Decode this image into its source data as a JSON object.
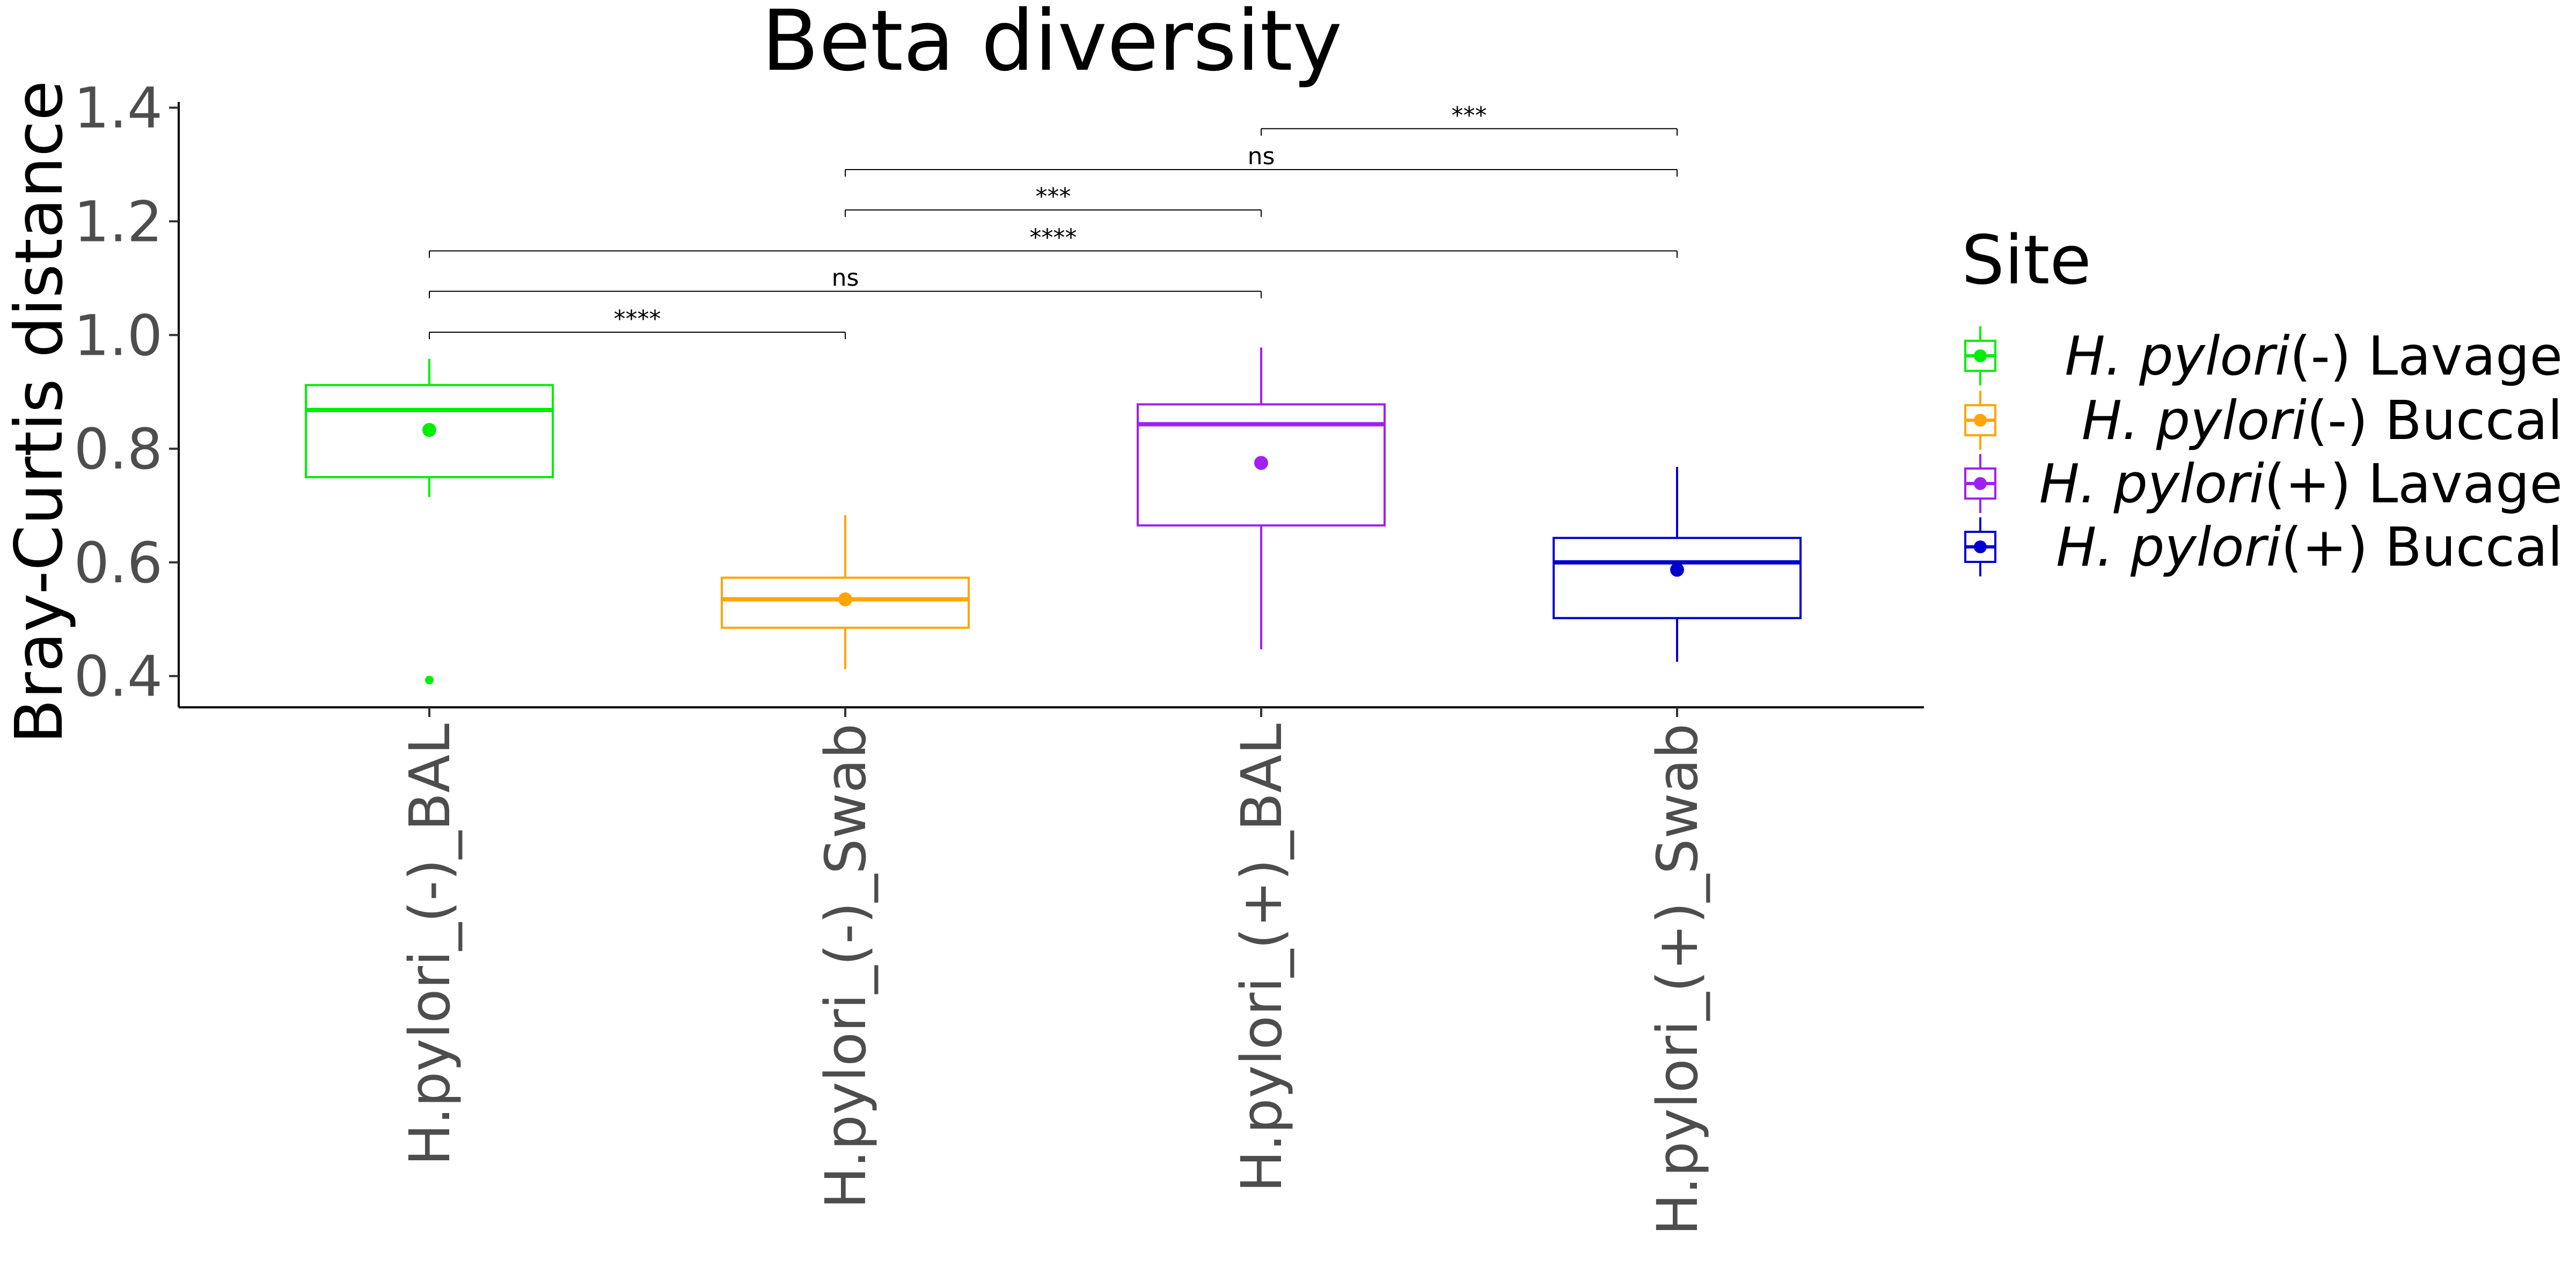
{
  "chart_data": {
    "type": "box",
    "title": "Beta diversity",
    "xlabel": "",
    "ylabel": "Bray-Curtis distance",
    "ylim": [
      0.345,
      1.41
    ],
    "yticks": [
      "0.4",
      "0.6",
      "0.8",
      "1.0",
      "1.2",
      "1.4"
    ],
    "categories": [
      "H.pylori_(-)_BAL",
      "H.pylori_(-)_Swab",
      "H.pylori_(+)_BAL",
      "H.pylori_(+)_Swab"
    ],
    "series": [
      {
        "category": "H.pylori_(-)_BAL",
        "legend_italic": "H. pylori",
        "legend_rest": "(-) Lavage",
        "color": "#00ee00",
        "whisker_low": 0.715,
        "q1": 0.75,
        "median": 0.868,
        "q3": 0.912,
        "whisker_high": 0.958,
        "mean": 0.833,
        "outliers": [
          0.393
        ]
      },
      {
        "category": "H.pylori_(-)_Swab",
        "legend_italic": "H. pylori",
        "legend_rest": "(-) Buccal",
        "color": "#ffa500",
        "whisker_low": 0.412,
        "q1": 0.485,
        "median": 0.535,
        "q3": 0.573,
        "whisker_high": 0.683,
        "mean": 0.535,
        "outliers": []
      },
      {
        "category": "H.pylori_(+)_BAL",
        "legend_italic": "H. pylori",
        "legend_rest": "(+) Lavage",
        "color": "#a020f0",
        "whisker_low": 0.447,
        "q1": 0.665,
        "median": 0.843,
        "q3": 0.878,
        "whisker_high": 0.978,
        "mean": 0.775,
        "outliers": []
      },
      {
        "category": "H.pylori_(+)_Swab",
        "legend_italic": "H. pylori",
        "legend_rest": "(+) Buccal",
        "color": "#0000cd",
        "whisker_low": 0.425,
        "q1": 0.502,
        "median": 0.6,
        "q3": 0.643,
        "whisker_high": 0.768,
        "mean": 0.587,
        "outliers": []
      }
    ],
    "comparisons": [
      {
        "from": 0,
        "to": 1,
        "y": 1.005,
        "label": "****"
      },
      {
        "from": 0,
        "to": 2,
        "y": 1.077,
        "label": "ns"
      },
      {
        "from": 0,
        "to": 3,
        "y": 1.148,
        "label": "****"
      },
      {
        "from": 1,
        "to": 2,
        "y": 1.22,
        "label": "***"
      },
      {
        "from": 1,
        "to": 3,
        "y": 1.291,
        "label": "ns"
      },
      {
        "from": 2,
        "to": 3,
        "y": 1.363,
        "label": "***"
      }
    ],
    "legend": {
      "title": "Site",
      "position": "right"
    },
    "grid": false
  }
}
